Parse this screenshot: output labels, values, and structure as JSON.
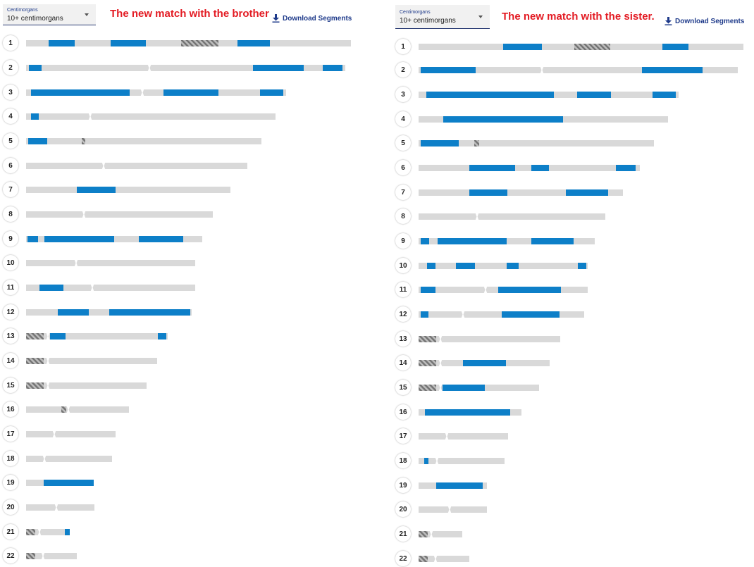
{
  "colors": {
    "match": "#0d7fc8",
    "chromosome": "#d9d9d9",
    "hatch_dark": "#757575",
    "annotation": "#e31b23",
    "link": "#1e3a8a"
  },
  "icons": {
    "download": "download-icon",
    "dropdown": "chevron-down-icon"
  },
  "panels": [
    {
      "id": "brother",
      "filter": {
        "label": "Centimorgans",
        "value": "10+ centimorgans"
      },
      "annotation": "The new match with the brother",
      "download_label": "Download Segments",
      "chromosomes": [
        {
          "label": "1",
          "segments": [
            [
              69,
              106
            ],
            [
              157,
              207
            ],
            [
              337,
              383
            ]
          ],
          "unknown": [
            [
              257,
              310
            ]
          ]
        },
        {
          "label": "2",
          "segments": [
            [
              41,
              59
            ],
            [
              359,
              431
            ],
            [
              458,
              486
            ]
          ],
          "unknown": []
        },
        {
          "label": "3",
          "segments": [
            [
              44,
              184
            ],
            [
              232,
              310
            ],
            [
              369,
              402
            ]
          ],
          "unknown": []
        },
        {
          "label": "4",
          "segments": [
            [
              44,
              55
            ]
          ],
          "unknown": []
        },
        {
          "label": "5",
          "segments": [
            [
              40,
              67
            ]
          ],
          "unknown": [
            [
              116,
              121
            ]
          ]
        },
        {
          "label": "6",
          "segments": [],
          "unknown": []
        },
        {
          "label": "7",
          "segments": [
            [
              109,
              164
            ]
          ],
          "unknown": []
        },
        {
          "label": "8",
          "segments": [],
          "unknown": []
        },
        {
          "label": "9",
          "segments": [
            [
              39,
              54
            ],
            [
              63,
              162
            ],
            [
              197,
              260
            ]
          ],
          "unknown": [
            [
              108,
              120
            ]
          ]
        },
        {
          "label": "10",
          "segments": [],
          "unknown": []
        },
        {
          "label": "11",
          "segments": [
            [
              56,
              90
            ]
          ],
          "unknown": []
        },
        {
          "label": "12",
          "segments": [
            [
              82,
              126
            ],
            [
              155,
              270
            ]
          ],
          "unknown": []
        },
        {
          "label": "13",
          "segments": [
            [
              71,
              93
            ],
            [
              224,
              236
            ]
          ],
          "unknown": [
            [
              37,
              62
            ]
          ]
        },
        {
          "label": "14",
          "segments": [],
          "unknown": [
            [
              37,
              62
            ]
          ]
        },
        {
          "label": "15",
          "segments": [],
          "unknown": [
            [
              37,
              62
            ]
          ]
        },
        {
          "label": "16",
          "segments": [],
          "unknown": [
            [
              87,
              94
            ]
          ]
        },
        {
          "label": "17",
          "segments": [],
          "unknown": []
        },
        {
          "label": "18",
          "segments": [],
          "unknown": []
        },
        {
          "label": "19",
          "segments": [
            [
              62,
              133
            ]
          ],
          "unknown": []
        },
        {
          "label": "20",
          "segments": [],
          "unknown": []
        },
        {
          "label": "21",
          "segments": [
            [
              92,
              99
            ]
          ],
          "unknown": [
            [
              37,
              50
            ]
          ]
        },
        {
          "label": "22",
          "segments": [],
          "unknown": [
            [
              37,
              50
            ]
          ]
        }
      ]
    },
    {
      "id": "sister",
      "filter": {
        "label": "Centimorgans",
        "value": "10+ centimorgans"
      },
      "annotation": "The new match with the sister.",
      "download_label": "Download Segments",
      "chromosomes": [
        {
          "label": "1",
          "segments": [
            [
              714,
              769
            ],
            [
              940,
              977
            ]
          ],
          "unknown": [
            [
              815,
              866
            ]
          ]
        },
        {
          "label": "2",
          "segments": [
            [
              597,
              675
            ],
            [
              911,
              997
            ]
          ],
          "unknown": []
        },
        {
          "label": "3",
          "segments": [
            [
              605,
              786
            ],
            [
              819,
              867
            ],
            [
              926,
              959
            ]
          ],
          "unknown": []
        },
        {
          "label": "4",
          "segments": [
            [
              629,
              799
            ]
          ],
          "unknown": []
        },
        {
          "label": "5",
          "segments": [
            [
              597,
              651
            ]
          ],
          "unknown": [
            [
              673,
              680
            ]
          ]
        },
        {
          "label": "6",
          "segments": [
            [
              666,
              731
            ],
            [
              754,
              779
            ],
            [
              874,
              902
            ]
          ],
          "unknown": []
        },
        {
          "label": "7",
          "segments": [
            [
              666,
              720
            ],
            [
              803,
              863
            ]
          ],
          "unknown": []
        },
        {
          "label": "8",
          "segments": [],
          "unknown": []
        },
        {
          "label": "9",
          "segments": [
            [
              597,
              609
            ],
            [
              621,
              719
            ],
            [
              754,
              814
            ]
          ],
          "unknown": [
            [
              665,
              675
            ]
          ]
        },
        {
          "label": "10",
          "segments": [
            [
              606,
              618
            ],
            [
              647,
              674
            ],
            [
              719,
              736
            ],
            [
              820,
              832
            ]
          ],
          "unknown": []
        },
        {
          "label": "11",
          "segments": [
            [
              597,
              618
            ],
            [
              707,
              796
            ]
          ],
          "unknown": []
        },
        {
          "label": "12",
          "segments": [
            [
              597,
              608
            ],
            [
              712,
              794
            ]
          ],
          "unknown": []
        },
        {
          "label": "13",
          "segments": [],
          "unknown": [
            [
              594,
              619
            ]
          ]
        },
        {
          "label": "14",
          "segments": [
            [
              657,
              718
            ]
          ],
          "unknown": [
            [
              594,
              619
            ]
          ]
        },
        {
          "label": "15",
          "segments": [
            [
              628,
              688
            ]
          ],
          "unknown": [
            [
              594,
              619
            ]
          ]
        },
        {
          "label": "16",
          "segments": [
            [
              603,
              724
            ]
          ],
          "unknown": [
            [
              645,
              657
            ]
          ]
        },
        {
          "label": "17",
          "segments": [],
          "unknown": []
        },
        {
          "label": "18",
          "segments": [
            [
              602,
              608
            ]
          ],
          "unknown": []
        },
        {
          "label": "19",
          "segments": [
            [
              619,
              685
            ]
          ],
          "unknown": []
        },
        {
          "label": "20",
          "segments": [],
          "unknown": []
        },
        {
          "label": "21",
          "segments": [],
          "unknown": [
            [
              594,
              607
            ]
          ]
        },
        {
          "label": "22",
          "segments": [],
          "unknown": [
            [
              594,
              607
            ]
          ]
        }
      ]
    }
  ]
}
